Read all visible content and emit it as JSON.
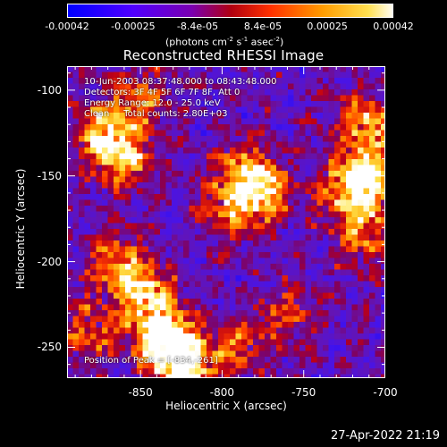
{
  "colorbar": {
    "ticks": [
      "-0.00042",
      "-0.00025",
      "-8.4e-05",
      "8.4e-05",
      "0.00025",
      "0.00042"
    ],
    "tick_values": [
      -0.00042,
      -0.00025,
      -8.4e-05,
      8.4e-05,
      0.00025,
      0.00042
    ],
    "range": [
      -0.00042,
      0.00042
    ],
    "unit_main": "(photons cm",
    "unit_exp1": "-2",
    "unit_mid": " s",
    "unit_exp2": "-1",
    "unit_end": " asec",
    "unit_exp3": "-2",
    "unit_close": ")",
    "colors": [
      "#0000ff",
      "#5000ff",
      "#8000c0",
      "#c00000",
      "#ff4000",
      "#ffa000",
      "#ffe060",
      "#ffffff"
    ]
  },
  "chart_data": {
    "type": "heatmap",
    "title": "Reconstructed RHESSI Image",
    "xlabel": "Heliocentric X (arcsec)",
    "ylabel": "Heliocentric Y (arcsec)",
    "xlim": [
      -895,
      -700
    ],
    "ylim": [
      -268,
      -86
    ],
    "x_ticks": [
      -850,
      -800,
      -750,
      -700
    ],
    "y_ticks": [
      -100,
      -150,
      -200,
      -250
    ],
    "x_tick_labels": [
      "-850",
      "-800",
      "-750",
      "-700"
    ],
    "y_tick_labels": [
      "-100",
      "-150",
      "-200",
      "-250"
    ],
    "annotations": {
      "time": "10-Jun-2003 08:37:48.000 to 08:43:48.000",
      "detectors": "Detectors: 3F 4F 5F 6F 7F 8F, Att 0",
      "energy": "Energy Range: 12.0 - 25.0 keV",
      "clean": "Clean     Total counts: 2.80E+03",
      "position": "Position of Peak = [-834,-261]"
    },
    "peak": [
      -834,
      -261
    ],
    "hot_regions": [
      {
        "x": -872,
        "y": -125,
        "v": 0.9
      },
      {
        "x": -860,
        "y": -140,
        "v": 0.75
      },
      {
        "x": -850,
        "y": -105,
        "v": 0.55
      },
      {
        "x": -865,
        "y": -200,
        "v": 0.7
      },
      {
        "x": -848,
        "y": -218,
        "v": 0.85
      },
      {
        "x": -838,
        "y": -240,
        "v": 0.9
      },
      {
        "x": -830,
        "y": -255,
        "v": 1.0
      },
      {
        "x": -820,
        "y": -262,
        "v": 0.7
      },
      {
        "x": -880,
        "y": -240,
        "v": 0.55
      },
      {
        "x": -785,
        "y": -150,
        "v": 0.8
      },
      {
        "x": -775,
        "y": -162,
        "v": 0.7
      },
      {
        "x": -795,
        "y": -170,
        "v": 0.55
      },
      {
        "x": -712,
        "y": -120,
        "v": 0.75
      },
      {
        "x": -708,
        "y": -150,
        "v": 0.95
      },
      {
        "x": -722,
        "y": -160,
        "v": 0.8
      },
      {
        "x": -712,
        "y": -185,
        "v": 0.6
      },
      {
        "x": -790,
        "y": -250,
        "v": 0.5
      },
      {
        "x": -760,
        "y": -230,
        "v": 0.45
      }
    ]
  },
  "footer": {
    "timestamp": "27-Apr-2022 21:19"
  }
}
